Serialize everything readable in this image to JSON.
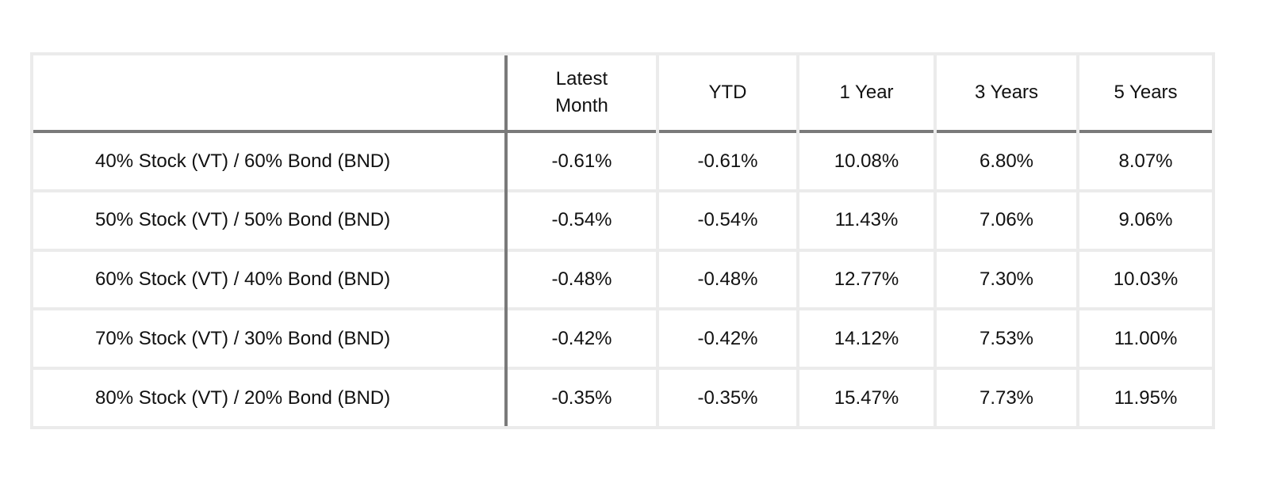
{
  "table": {
    "headers": [
      "",
      "Latest Month",
      "YTD",
      "1 Year",
      "3 Years",
      "5 Years"
    ],
    "rows": [
      [
        "40% Stock (VT) / 60% Bond (BND)",
        "-0.61%",
        "-0.61%",
        "10.08%",
        "6.80%",
        "8.07%"
      ],
      [
        "50% Stock (VT) / 50% Bond (BND)",
        "-0.54%",
        "-0.54%",
        "11.43%",
        "7.06%",
        "9.06%"
      ],
      [
        "60% Stock (VT) / 40% Bond (BND)",
        "-0.48%",
        "-0.48%",
        "12.77%",
        "7.30%",
        "10.03%"
      ],
      [
        "70% Stock (VT) / 30% Bond (BND)",
        "-0.42%",
        "-0.42%",
        "14.12%",
        "7.53%",
        "11.00%"
      ],
      [
        "80% Stock (VT) / 20% Bond (BND)",
        "-0.35%",
        "-0.35%",
        "15.47%",
        "7.73%",
        "11.95%"
      ]
    ]
  },
  "colors": {
    "grid": "#ebebeb",
    "divider": "#7a7a7a",
    "text": "#111111"
  }
}
